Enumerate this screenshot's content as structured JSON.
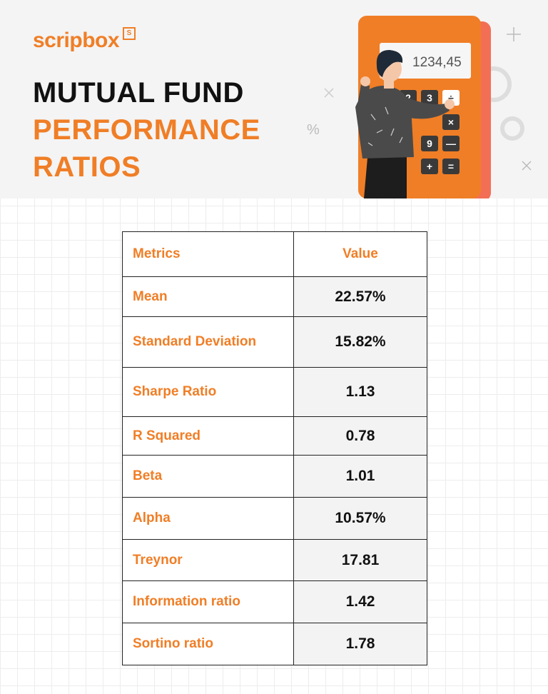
{
  "brand": {
    "name": "scripbox",
    "badge": "S"
  },
  "title": {
    "line1": "MUTUAL FUND",
    "line2": "PERFORMANCE",
    "line3": "RATIOS"
  },
  "calculator": {
    "display": "1234,45",
    "keys": [
      "2",
      "3",
      "÷",
      "×",
      "9",
      "—",
      "+",
      "="
    ]
  },
  "decor": {
    "percent": "%"
  },
  "table": {
    "headers": {
      "metric": "Metrics",
      "value": "Value"
    },
    "rows": [
      {
        "metric": "Mean",
        "value": "22.57%"
      },
      {
        "metric": "Standard Deviation",
        "value": "15.82%"
      },
      {
        "metric": "Sharpe Ratio",
        "value": "1.13"
      },
      {
        "metric": "R Squared",
        "value": "0.78"
      },
      {
        "metric": "Beta",
        "value": "1.01"
      },
      {
        "metric": "Alpha",
        "value": "10.57%"
      },
      {
        "metric": "Treynor",
        "value": "17.81"
      },
      {
        "metric": "Information ratio",
        "value": "1.42"
      },
      {
        "metric": "Sortino ratio",
        "value": "1.78"
      }
    ]
  },
  "colors": {
    "accent": "#f07e26",
    "text": "#111111",
    "header_bg": "#f4f4f4"
  }
}
